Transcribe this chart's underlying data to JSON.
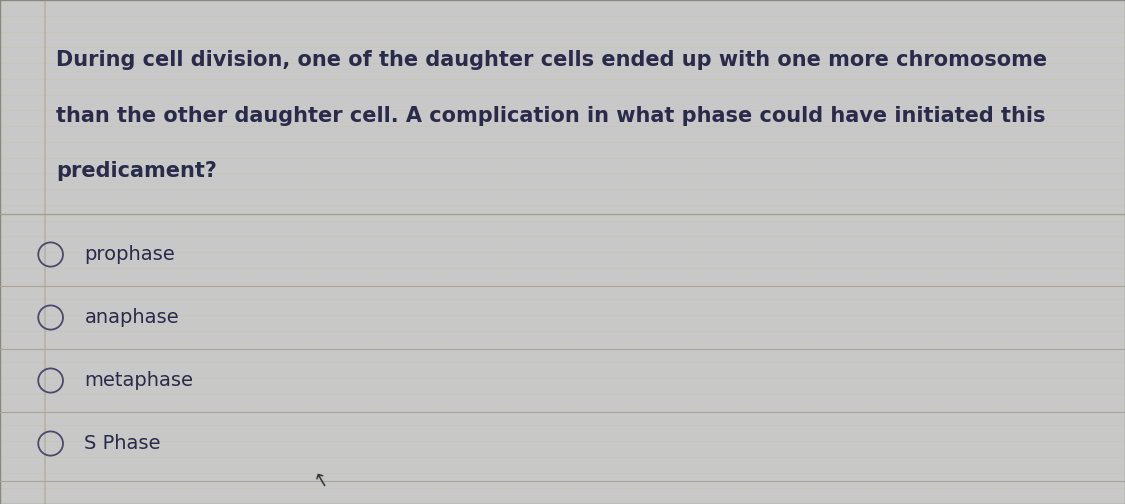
{
  "question_lines": [
    "During cell division, one of the daughter cells ended up with one more chromosome",
    "than the other daughter cell. A complication in what phase could have initiated this",
    "predicament?"
  ],
  "options": [
    "prophase",
    "anaphase",
    "metaphase",
    "S Phase"
  ],
  "bg_color": "#c8c8c8",
  "card_color": "#e8e4d8",
  "grid_line_color_h": "#c8c4b4",
  "grid_line_color_v": "#d0ccbe",
  "border_color": "#888880",
  "text_color": "#2a2a4a",
  "circle_color": "#4a4a6a",
  "font_size_question": 15.0,
  "font_size_options": 14.0,
  "figwidth": 11.25,
  "figheight": 5.04,
  "dpi": 100
}
